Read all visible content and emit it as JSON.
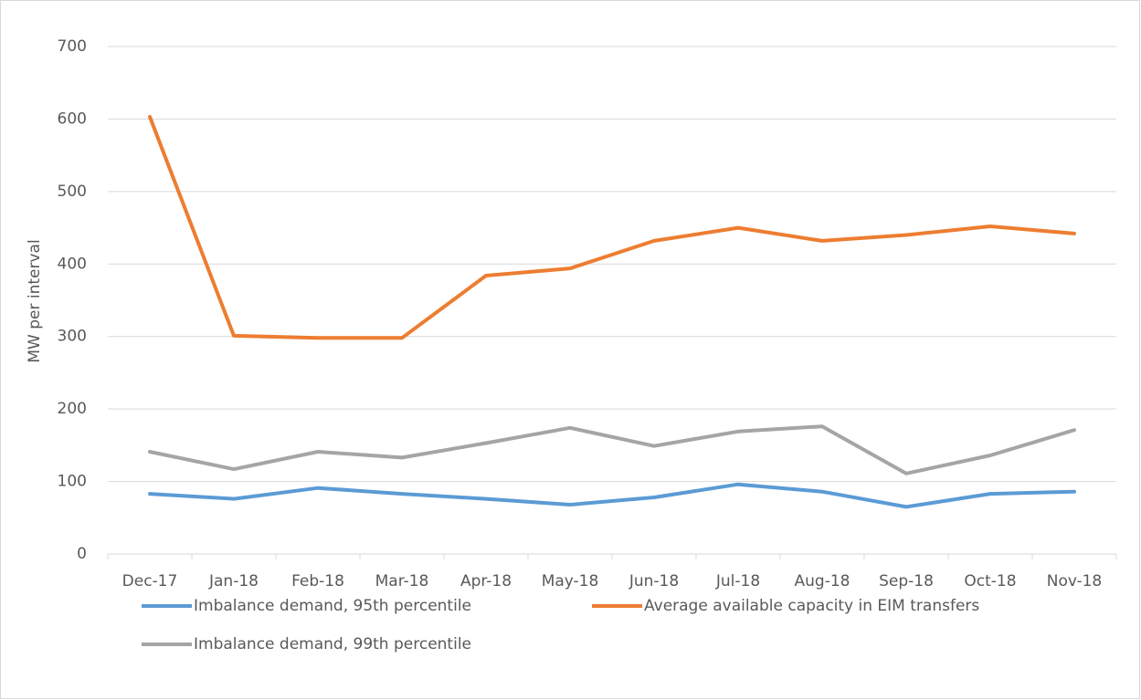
{
  "chart_data": {
    "type": "line",
    "y_label": "MW per interval",
    "categories": [
      "Dec-17",
      "Jan-18",
      "Feb-18",
      "Mar-18",
      "Apr-18",
      "May-18",
      "Jun-18",
      "Jul-18",
      "Aug-18",
      "Sep-18",
      "Oct-18",
      "Nov-18"
    ],
    "series": [
      {
        "name": "Imbalance demand, 95th percentile",
        "color": "#5b9bd5",
        "values": [
          83,
          76,
          91,
          83,
          76,
          68,
          78,
          96,
          86,
          65,
          83,
          86
        ]
      },
      {
        "name": "Average available capacity in EIM transfers",
        "color": "#ed7d31",
        "values": [
          603,
          301,
          298,
          298,
          384,
          394,
          432,
          450,
          432,
          440,
          452,
          442
        ]
      },
      {
        "name": "Imbalance demand, 99th percentile",
        "color": "#a5a5a5",
        "values": [
          141,
          117,
          141,
          133,
          153,
          174,
          149,
          169,
          176,
          111,
          136,
          171
        ]
      }
    ],
    "ylim": [
      0,
      700
    ],
    "yticks": [
      0,
      100,
      200,
      300,
      400,
      500,
      600,
      700
    ],
    "grid": true
  }
}
